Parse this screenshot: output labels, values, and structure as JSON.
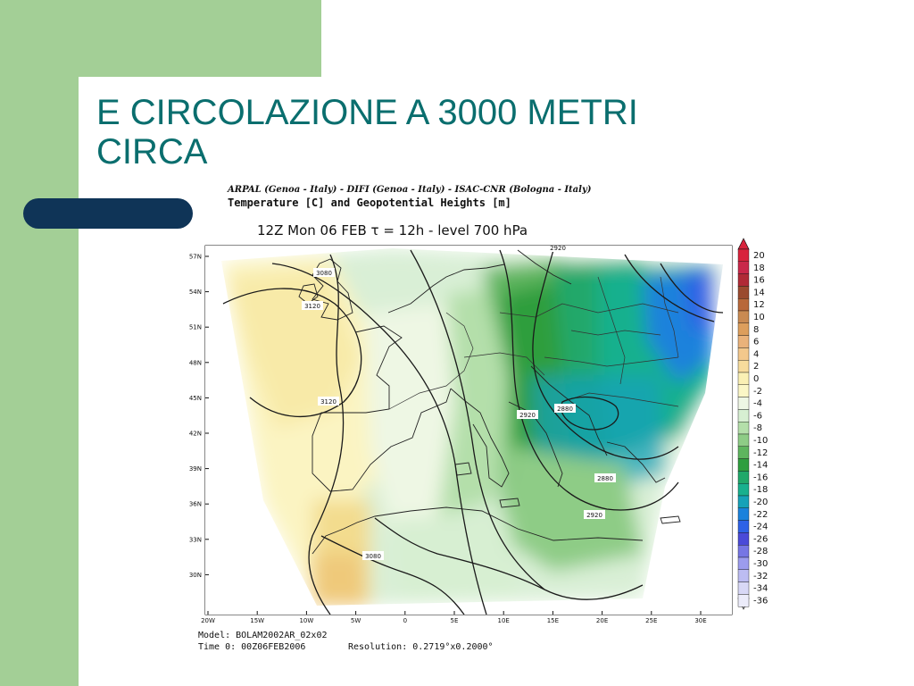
{
  "slide": {
    "title_line1": "E CIRCOLAZIONE A 3000 METRI",
    "title_line2": "CIRCA"
  },
  "figure": {
    "header_institutions": "ARPAL (Genoa - Italy)  -  DIFI (Genoa - Italy)  -  ISAC-CNR (Bologna - Italy)",
    "header_fields": "Temperature [C] and Geopotential Heights [m]",
    "header_time": "12Z Mon 06 FEB  τ = 12h  -  level 700 hPa",
    "footer_model": "Model:  BOLAM2002AR_02x02",
    "footer_time": "Time 0:  00Z06FEB2006",
    "footer_resolution": "Resolution:  0.2719°x0.2000°",
    "lat_ticks": [
      "57N",
      "54N",
      "51N",
      "48N",
      "45N",
      "42N",
      "39N",
      "36N",
      "33N",
      "30N"
    ],
    "lon_ticks": [
      "20W",
      "15W",
      "10W",
      "5W",
      "0",
      "5E",
      "10E",
      "15E",
      "20E",
      "25E",
      "30E"
    ],
    "contour_labels": [
      "2920",
      "3080",
      "3120",
      "3120",
      "2920",
      "2880",
      "2880",
      "2920",
      "3080"
    ],
    "colorbar": {
      "labels": [
        "20",
        "18",
        "16",
        "14",
        "12",
        "10",
        "8",
        "6",
        "4",
        "2",
        "0",
        "-2",
        "-4",
        "-6",
        "-8",
        "-10",
        "-12",
        "-14",
        "-16",
        "-18",
        "-20",
        "-22",
        "-24",
        "-26",
        "-28",
        "-30",
        "-32",
        "-34",
        "-36"
      ],
      "colors": [
        "#d8233c",
        "#c9284a",
        "#b02a36",
        "#9a4a2e",
        "#b8683a",
        "#c98a52",
        "#dd9e5c",
        "#eab27a",
        "#f3c88c",
        "#f7dc9c",
        "#faf0b4",
        "#fbf7c6",
        "#eef7e4",
        "#d7efd2",
        "#b4dfaa",
        "#8ecc86",
        "#5eb55e",
        "#2e9e3e",
        "#20a86a",
        "#18b08e",
        "#16a2b8",
        "#1a82dc",
        "#2e62e6",
        "#4a4ad8",
        "#7676e4",
        "#9c9cee",
        "#bcbcf2",
        "#d8d8f6",
        "#ececfa"
      ]
    }
  }
}
